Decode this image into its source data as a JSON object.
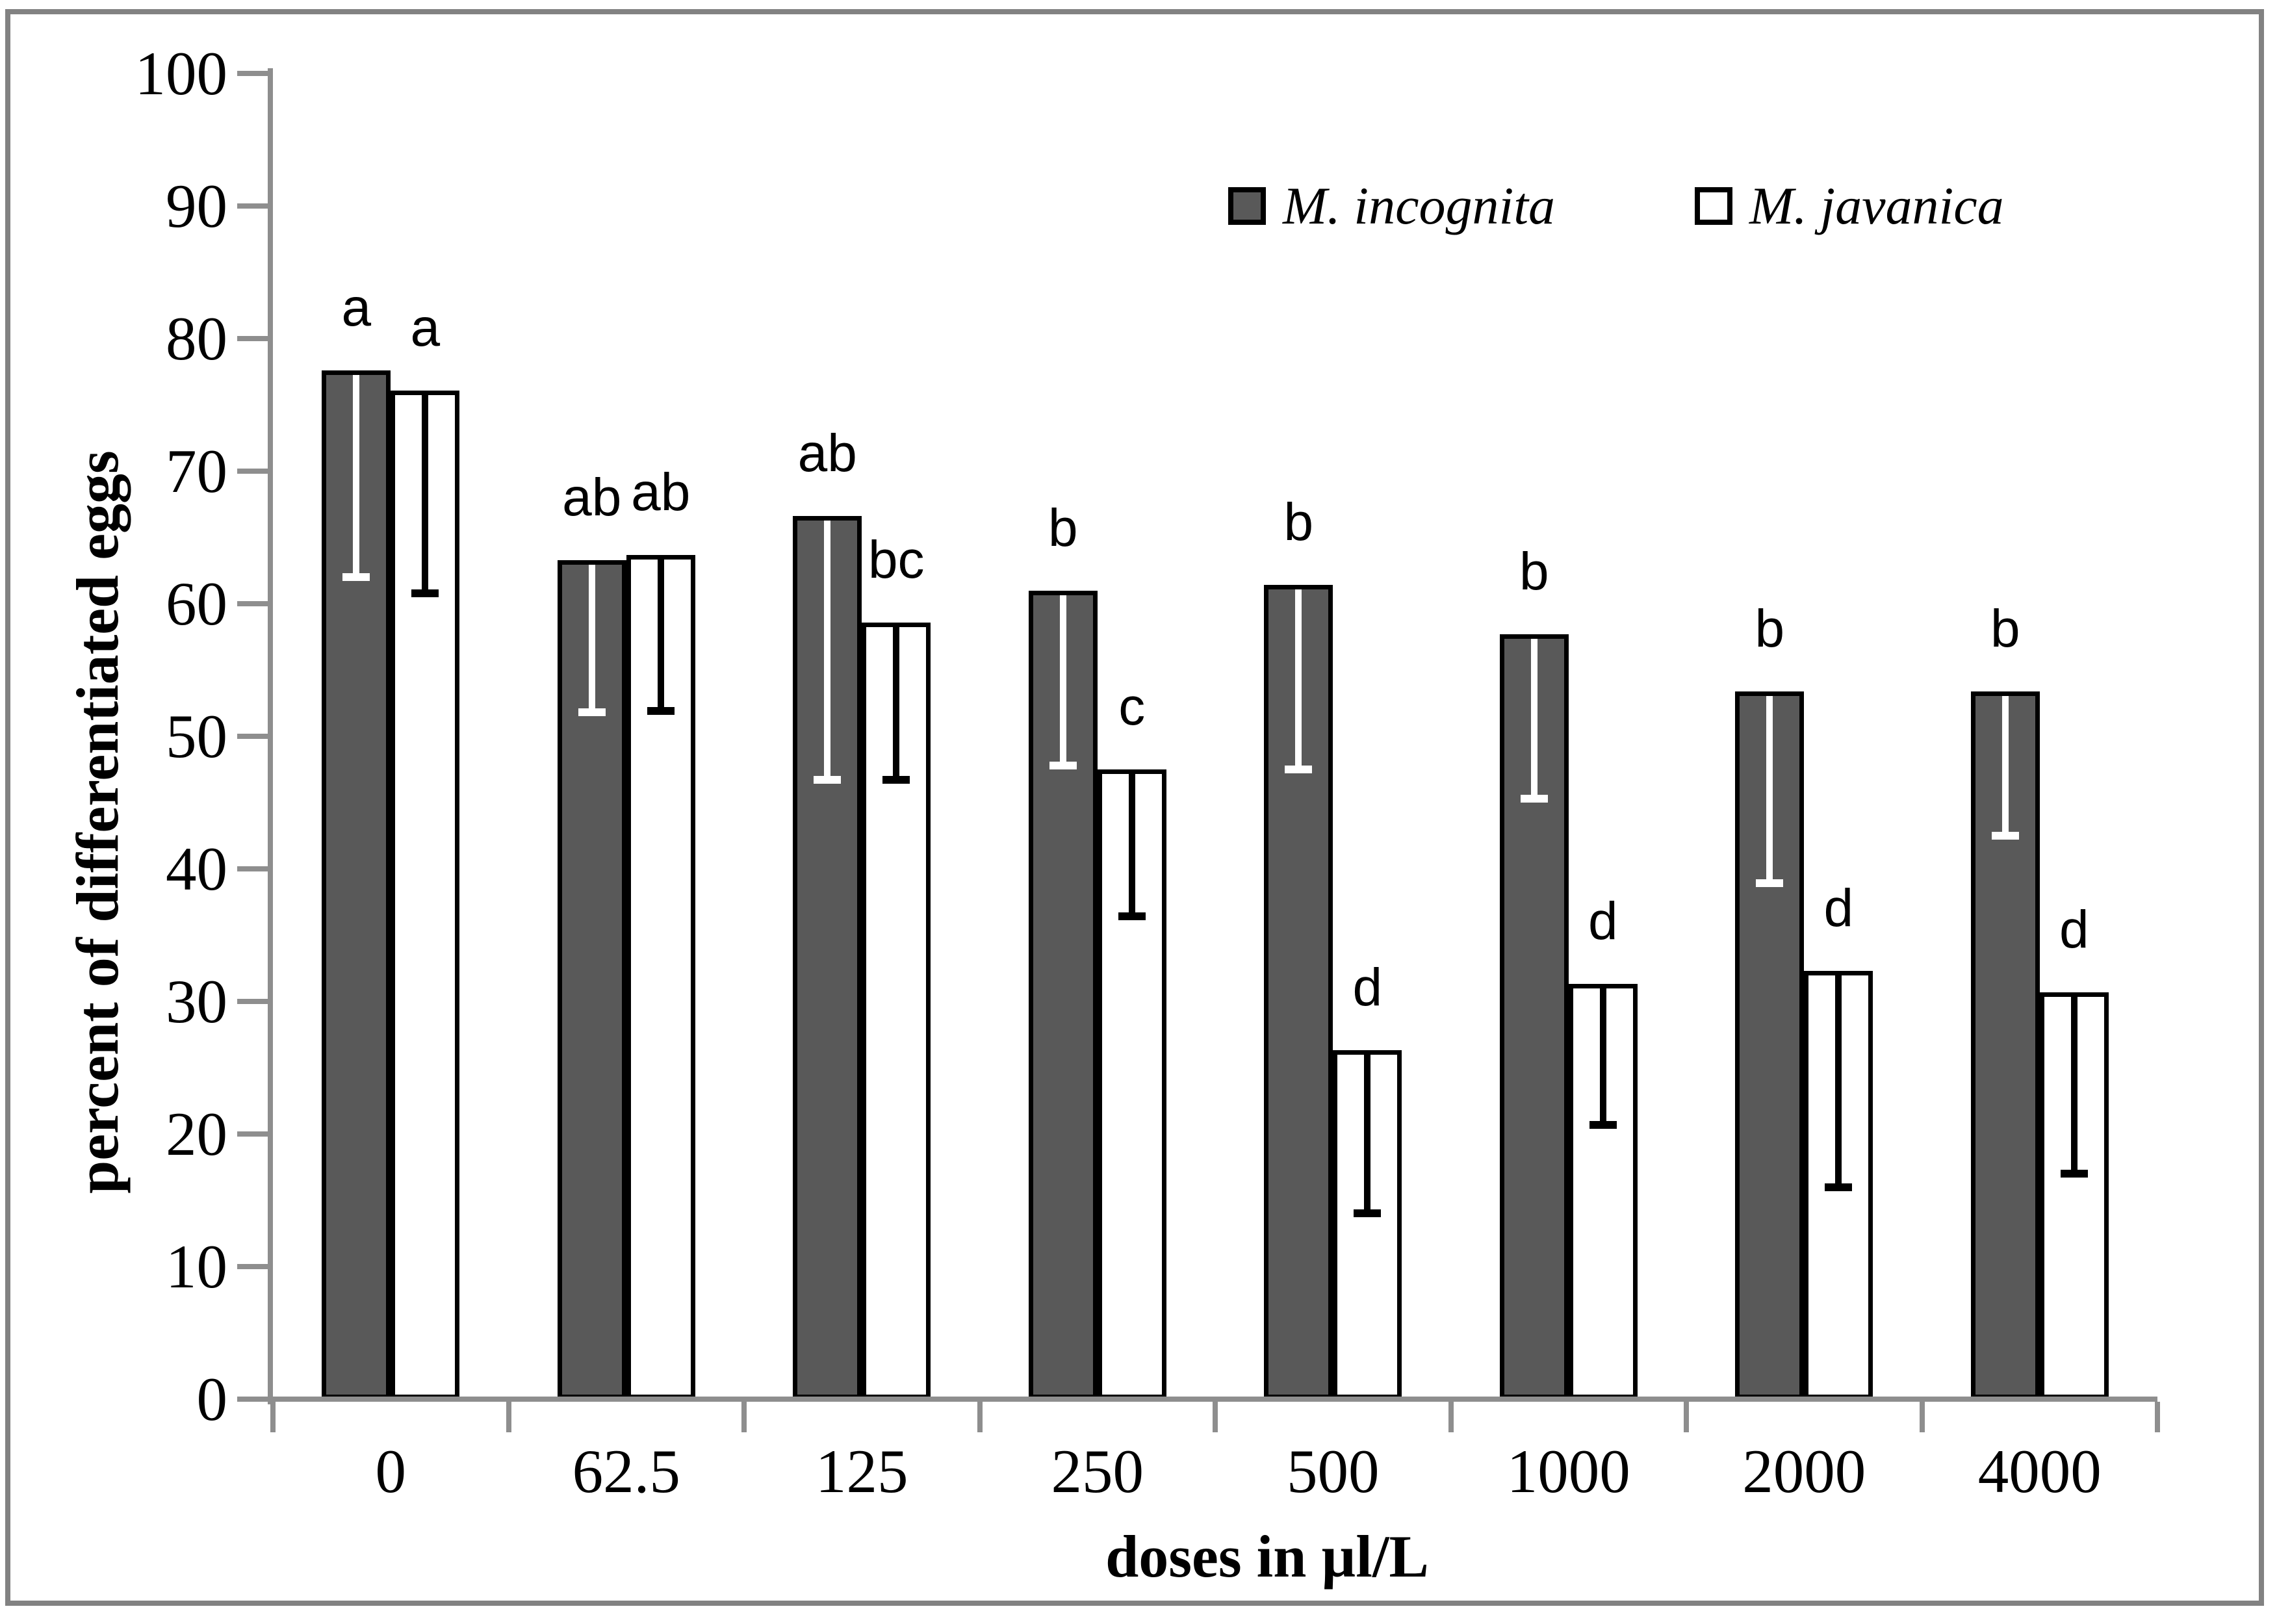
{
  "figure": {
    "kind": "grouped-bar-chart-with-error-bars",
    "border_color": "#828282",
    "background": "#ffffff"
  },
  "axes": {
    "y_title": "percent of differentiated eggs",
    "x_title": "doses in µl/L",
    "y_ticks": [
      0,
      10,
      20,
      30,
      40,
      50,
      60,
      70,
      80,
      90,
      100
    ],
    "axis_color": "#8e8e8e"
  },
  "legend": {
    "items": [
      {
        "label": "M. incognita",
        "swatch_color": "#595959"
      },
      {
        "label": "M. javanica",
        "swatch_color": "#ffffff"
      }
    ]
  },
  "chart_data": {
    "type": "bar",
    "title": "",
    "xlabel": "doses in µl/L",
    "ylabel": "percent of differentiated eggs",
    "ylim": [
      0,
      100
    ],
    "grid": false,
    "legend_position": "top-center-inside",
    "categories": [
      "0",
      "62.5",
      "125",
      "250",
      "500",
      "1000",
      "2000",
      "4000"
    ],
    "series": [
      {
        "name": "M. incognita",
        "fill": "#595959",
        "edge": "#000000",
        "error_color": "#ffffff",
        "values": [
          77.6,
          63.3,
          66.6,
          61.0,
          61.4,
          57.7,
          53.4,
          53.4
        ],
        "error_minus": [
          15.6,
          11.5,
          19.9,
          13.2,
          13.9,
          12.4,
          14.5,
          10.9
        ],
        "letters": [
          "a",
          "ab",
          "ab",
          "b",
          "b",
          "b",
          "b",
          "b"
        ]
      },
      {
        "name": "M. javanica",
        "fill": "#ffffff",
        "edge": "#000000",
        "error_color": "#000000",
        "values": [
          76.1,
          63.7,
          58.6,
          47.5,
          26.3,
          31.3,
          32.3,
          30.7
        ],
        "error_minus": [
          15.3,
          11.8,
          11.9,
          11.1,
          12.3,
          10.6,
          16.3,
          13.7
        ],
        "letters": [
          "a",
          "ab",
          "bc",
          "c",
          "d",
          "d",
          "d",
          "d"
        ]
      }
    ]
  }
}
